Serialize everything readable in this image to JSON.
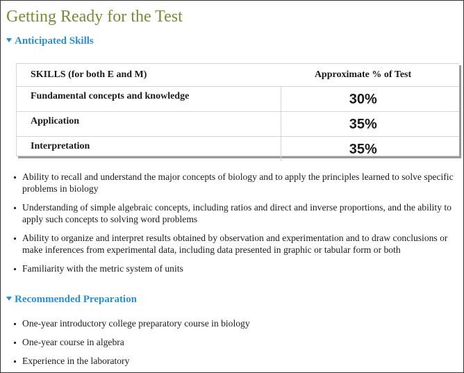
{
  "page": {
    "title": "Getting Ready for the Test"
  },
  "anticipated": {
    "header": "Anticipated Skills",
    "table": {
      "col_skill": "SKILLS (for both E and M)",
      "col_pct": "Approximate % of Test",
      "rows": [
        {
          "skill": "Fundamental concepts and knowledge",
          "pct": "30%"
        },
        {
          "skill": "Application",
          "pct": "35%"
        },
        {
          "skill": "Interpretation",
          "pct": "35%"
        }
      ]
    },
    "bullets": [
      "Ability to recall and understand the major concepts of biology and to apply the principles learned to solve specific problems in biology",
      "Understanding of simple algebraic concepts, including ratios and direct and inverse proportions, and the ability to apply such concepts to solving word problems",
      "Ability to organize and interpret results obtained by observation and experimentation and to draw conclusions or make inferences from experimental data, including data presented in graphic or tabular form or both",
      "Familiarity with the metric system of units"
    ]
  },
  "preparation": {
    "header": "Recommended Preparation",
    "bullets": [
      "One-year introductory college preparatory course in biology",
      "One-year course in algebra",
      "Experience in the laboratory"
    ]
  },
  "colors": {
    "title": "#7b8a3a",
    "section_header": "#2a8fd6"
  }
}
